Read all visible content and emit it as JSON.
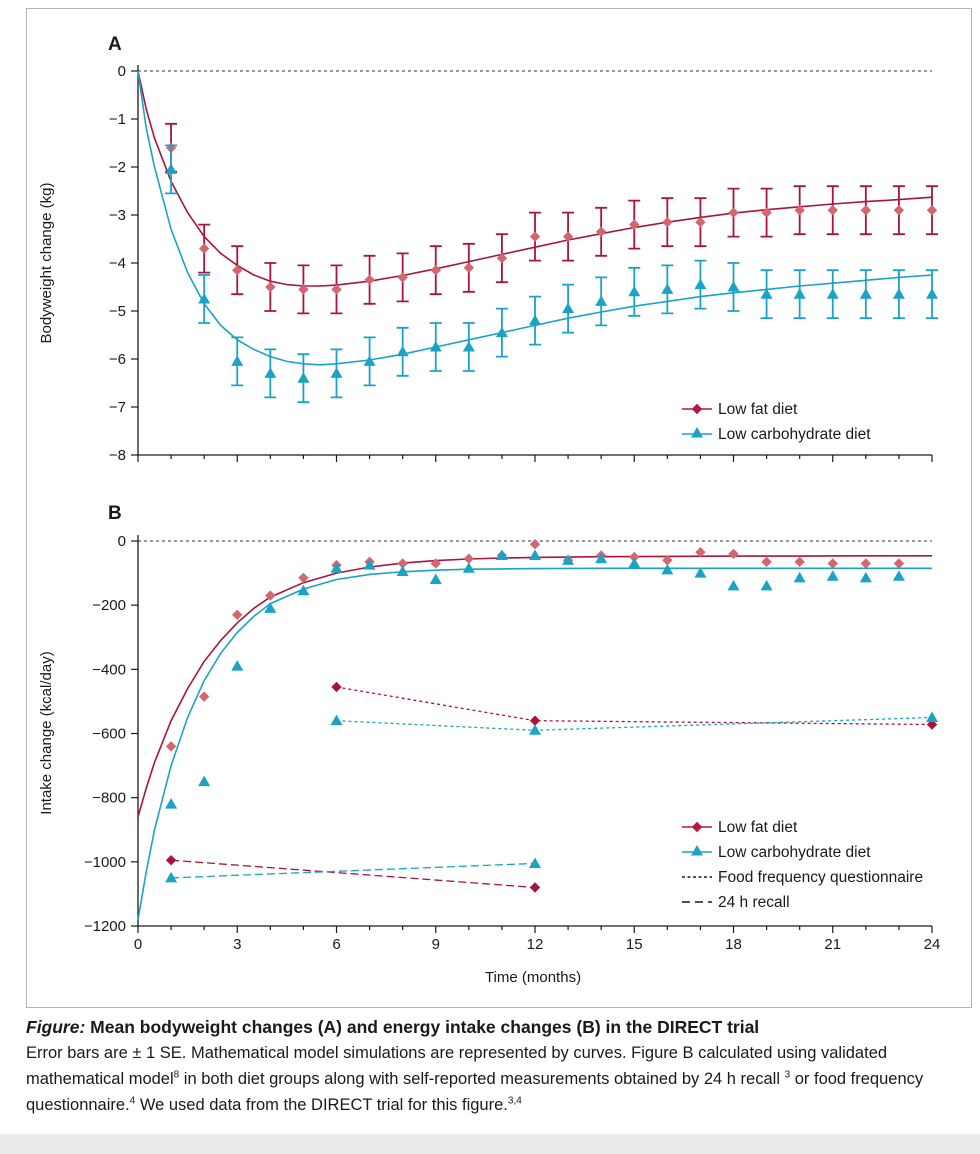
{
  "colors": {
    "lowfat_marker": "#d3666e",
    "lowfat_bar": "#a8143c",
    "lowfat_curve": "#a8143c",
    "lowfat_legend": "#b8163d",
    "lowcarb": "#1aa3c4",
    "axis": "#1a1a1a"
  },
  "chart_data": [
    {
      "panel": "A",
      "type": "line",
      "ylabel": "Bodyweight change (kg)",
      "xlim": [
        0,
        24
      ],
      "ylim": [
        -8,
        0
      ],
      "yticks": [
        0,
        -1,
        -2,
        -3,
        -4,
        -5,
        -6,
        -7,
        -8
      ],
      "ytick_labels": [
        "0",
        "−1",
        "−2",
        "−3",
        "−4",
        "−5",
        "−6",
        "−7",
        "−8"
      ],
      "xticks": [
        0,
        3,
        6,
        9,
        12,
        15,
        18,
        21,
        24
      ],
      "zero_line": "dashed",
      "legend_position": "bottom-right",
      "series": [
        {
          "name": "Low fat diet",
          "marker": "diamond",
          "x": [
            1,
            2,
            3,
            4,
            5,
            6,
            7,
            8,
            9,
            10,
            11,
            12,
            13,
            14,
            15,
            16,
            17,
            18,
            19,
            20,
            21,
            22,
            23,
            24
          ],
          "y": [
            -1.6,
            -3.7,
            -4.15,
            -4.5,
            -4.55,
            -4.55,
            -4.35,
            -4.3,
            -4.15,
            -4.1,
            -3.9,
            -3.45,
            -3.45,
            -3.35,
            -3.2,
            -3.15,
            -3.15,
            -2.95,
            -2.95,
            -2.9,
            -2.9,
            -2.9,
            -2.9,
            -2.9
          ],
          "se": [
            0.5,
            0.5,
            0.5,
            0.5,
            0.5,
            0.5,
            0.5,
            0.5,
            0.5,
            0.5,
            0.5,
            0.5,
            0.5,
            0.5,
            0.5,
            0.5,
            0.5,
            0.5,
            0.5,
            0.5,
            0.5,
            0.5,
            0.5,
            0.5
          ],
          "model_x": [
            0,
            0.25,
            0.5,
            1,
            1.5,
            2,
            2.5,
            3,
            3.5,
            4,
            4.5,
            5,
            5.5,
            6,
            7,
            8,
            9,
            10,
            11,
            12,
            13,
            14,
            15,
            16,
            17,
            18,
            19,
            20,
            21,
            22,
            23,
            24
          ],
          "model_y": [
            0,
            -0.8,
            -1.4,
            -2.3,
            -2.95,
            -3.45,
            -3.8,
            -4.05,
            -4.25,
            -4.38,
            -4.45,
            -4.48,
            -4.48,
            -4.46,
            -4.38,
            -4.26,
            -4.12,
            -3.97,
            -3.82,
            -3.67,
            -3.52,
            -3.39,
            -3.26,
            -3.15,
            -3.05,
            -2.96,
            -2.89,
            -2.83,
            -2.77,
            -2.72,
            -2.68,
            -2.63
          ]
        },
        {
          "name": "Low carbohydrate diet",
          "marker": "triangle",
          "x": [
            1,
            2,
            3,
            4,
            5,
            6,
            7,
            8,
            9,
            10,
            11,
            12,
            13,
            14,
            15,
            16,
            17,
            18,
            19,
            20,
            21,
            22,
            23,
            24
          ],
          "y": [
            -2.05,
            -4.75,
            -6.05,
            -6.3,
            -6.4,
            -6.3,
            -6.05,
            -5.85,
            -5.75,
            -5.75,
            -5.45,
            -5.2,
            -4.95,
            -4.8,
            -4.6,
            -4.55,
            -4.45,
            -4.5,
            -4.65,
            -4.65,
            -4.65,
            -4.65,
            -4.65,
            -4.65
          ],
          "se": [
            0.5,
            0.5,
            0.5,
            0.5,
            0.5,
            0.5,
            0.5,
            0.5,
            0.5,
            0.5,
            0.5,
            0.5,
            0.5,
            0.5,
            0.5,
            0.5,
            0.5,
            0.5,
            0.5,
            0.5,
            0.5,
            0.5,
            0.5,
            0.5
          ],
          "model_x": [
            0,
            0.25,
            0.5,
            1,
            1.5,
            2,
            2.5,
            3,
            3.5,
            4,
            4.5,
            5,
            5.5,
            6,
            7,
            8,
            9,
            10,
            11,
            12,
            13,
            14,
            15,
            16,
            17,
            18,
            19,
            20,
            21,
            22,
            23,
            24
          ],
          "model_y": [
            0,
            -1.2,
            -2.0,
            -3.3,
            -4.2,
            -4.85,
            -5.3,
            -5.6,
            -5.8,
            -5.95,
            -6.05,
            -6.1,
            -6.12,
            -6.1,
            -6.02,
            -5.9,
            -5.75,
            -5.6,
            -5.45,
            -5.3,
            -5.15,
            -5.02,
            -4.9,
            -4.8,
            -4.7,
            -4.62,
            -4.55,
            -4.48,
            -4.42,
            -4.36,
            -4.3,
            -4.25
          ]
        }
      ],
      "legend": [
        {
          "label": "Low fat diet",
          "marker": "diamond"
        },
        {
          "label": "Low carbohydrate diet",
          "marker": "triangle"
        }
      ]
    },
    {
      "panel": "B",
      "type": "line",
      "ylabel": "Intake change (kcal/day)",
      "xlabel": "Time (months)",
      "xlim": [
        0,
        24
      ],
      "ylim": [
        -1200,
        0
      ],
      "yticks": [
        0,
        -200,
        -400,
        -600,
        -800,
        -1000,
        -1200
      ],
      "ytick_labels": [
        "0",
        "−200",
        "−400",
        "−600",
        "−800",
        "−1000",
        "−1200"
      ],
      "xticks": [
        0,
        3,
        6,
        9,
        12,
        15,
        18,
        21,
        24
      ],
      "xtick_labels": [
        "0",
        "3",
        "6",
        "9",
        "12",
        "15",
        "18",
        "21",
        "24"
      ],
      "zero_line": "dashed",
      "legend_position": "bottom-right",
      "series": [
        {
          "name": "Low fat diet",
          "marker": "diamond",
          "x": [
            1,
            2,
            3,
            4,
            5,
            6,
            7,
            8,
            9,
            10,
            11,
            12,
            13,
            14,
            15,
            16,
            17,
            18,
            19,
            20,
            21,
            22,
            23
          ],
          "y": [
            -640,
            -485,
            -230,
            -170,
            -115,
            -75,
            -65,
            -70,
            -70,
            -55,
            -45,
            -10,
            -60,
            -45,
            -50,
            -60,
            -35,
            -40,
            -65,
            -65,
            -70,
            -70,
            -70
          ],
          "model_x": [
            0,
            0.25,
            0.5,
            1,
            1.5,
            2,
            2.5,
            3,
            3.5,
            4,
            5,
            6,
            7,
            8,
            9,
            10,
            11,
            12,
            14,
            16,
            18,
            20,
            22,
            24
          ],
          "model_y": [
            -860,
            -770,
            -690,
            -560,
            -460,
            -375,
            -310,
            -255,
            -210,
            -175,
            -130,
            -100,
            -81,
            -69,
            -61,
            -56,
            -53,
            -51,
            -49,
            -48,
            -47,
            -47,
            -46,
            -46
          ]
        },
        {
          "name": "Low carbohydrate diet",
          "marker": "triangle",
          "x": [
            1,
            2,
            3,
            4,
            5,
            6,
            7,
            8,
            9,
            10,
            11,
            12,
            13,
            14,
            15,
            16,
            17,
            18,
            19,
            20,
            21,
            22,
            23
          ],
          "y": [
            -820,
            -750,
            -390,
            -210,
            -155,
            -85,
            -75,
            -95,
            -120,
            -85,
            -45,
            -45,
            -60,
            -55,
            -70,
            -90,
            -100,
            -140,
            -140,
            -115,
            -110,
            -115,
            -110
          ],
          "model_x": [
            0,
            0.25,
            0.5,
            1,
            1.5,
            2,
            2.5,
            3,
            3.5,
            4,
            5,
            6,
            7,
            8,
            9,
            10,
            11,
            12,
            14,
            16,
            18,
            20,
            22,
            24
          ],
          "model_y": [
            -1180,
            -1030,
            -900,
            -700,
            -550,
            -435,
            -350,
            -285,
            -235,
            -195,
            -150,
            -120,
            -104,
            -96,
            -91,
            -88,
            -87,
            -86,
            -85,
            -85,
            -85,
            -85,
            -85,
            -85
          ]
        },
        {
          "name": "Low fat diet — Food frequency questionnaire",
          "marker": "diamond",
          "style": "short-dash",
          "x": [
            6,
            12,
            24
          ],
          "y": [
            -455,
            -560,
            -572
          ]
        },
        {
          "name": "Low carbohydrate diet — Food frequency questionnaire",
          "marker": "triangle",
          "style": "short-dash",
          "x": [
            6,
            12,
            24
          ],
          "y": [
            -560,
            -590,
            -550
          ]
        },
        {
          "name": "Low fat diet — 24 h recall",
          "marker": "diamond",
          "style": "long-dash",
          "x": [
            1,
            12
          ],
          "y": [
            -995,
            -1080
          ]
        },
        {
          "name": "Low carbohydrate diet — 24 h recall",
          "marker": "triangle",
          "style": "long-dash",
          "x": [
            1,
            12
          ],
          "y": [
            -1050,
            -1005
          ]
        }
      ],
      "legend": [
        {
          "label": "Low fat diet",
          "marker": "diamond"
        },
        {
          "label": "Low carbohydrate diet",
          "marker": "triangle"
        },
        {
          "label": "Food frequency questionnaire",
          "marker": "short-dash"
        },
        {
          "label": "24 h recall",
          "marker": "long-dash"
        }
      ]
    }
  ],
  "caption": {
    "title_italic": "Figure:",
    "title_rest": " Mean bodyweight changes (A) and energy intake changes (B) in the DIRECT trial",
    "body_part1": "Error bars are ± 1 SE. Mathematical model simulations are represented by curves. Figure B calculated using validated mathematical model",
    "ref_model": "8",
    "body_part2": " in both diet groups along with self-reported measurements obtained by 24 h recall ",
    "ref_recall": "3",
    "body_part3": " or food frequency questionnaire.",
    "ref_ffq": "4",
    "body_part4": " We used data from the DIRECT trial for this figure.",
    "ref_data": "3,4"
  }
}
